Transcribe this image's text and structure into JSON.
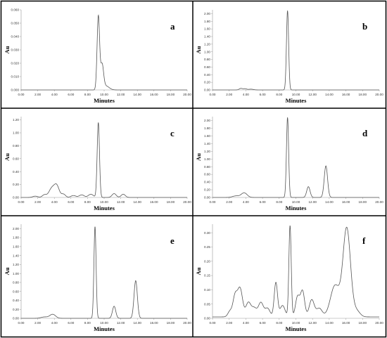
{
  "figure": {
    "frame_color": "#000000",
    "trace_color": "#555555"
  },
  "chart_data": [
    {
      "type": "line",
      "panel_label": "a",
      "xlabel": "Minutes",
      "ylabel": "Au",
      "xlim": [
        0,
        20
      ],
      "ylim": [
        0,
        0.06
      ],
      "xticks": [
        "0.00",
        "2.00",
        "4.00",
        "6.00",
        "8.00",
        "10.00",
        "12.00",
        "14.00",
        "16.00",
        "18.00",
        "20.00"
      ],
      "yticks": [
        "0.000",
        "0.010",
        "0.020",
        "0.030",
        "0.040",
        "0.050",
        "0.060"
      ],
      "baseline": 0.0,
      "peaks": [
        {
          "rt": 9.3,
          "height": 0.055,
          "width": 0.15
        },
        {
          "rt": 9.75,
          "height": 0.018,
          "width": 0.18
        },
        {
          "rt": 10.2,
          "height": 0.003,
          "width": 0.4
        }
      ]
    },
    {
      "type": "line",
      "panel_label": "b",
      "xlabel": "Minutes",
      "ylabel": "Au",
      "xlim": [
        0,
        20
      ],
      "ylim": [
        0,
        2.1
      ],
      "xticks": [
        "0.00",
        "2.00",
        "4.00",
        "6.00",
        "8.00",
        "10.00",
        "12.00",
        "14.00",
        "16.00",
        "18.00",
        "20.00"
      ],
      "yticks": [
        "0.00",
        "0.20",
        "0.40",
        "0.60",
        "0.80",
        "1.00",
        "1.20",
        "1.40",
        "1.60",
        "1.80",
        "2.00"
      ],
      "baseline": 0.0,
      "peaks": [
        {
          "rt": 3.4,
          "height": 0.04,
          "width": 0.2
        },
        {
          "rt": 3.9,
          "height": 0.03,
          "width": 0.2
        },
        {
          "rt": 4.6,
          "height": 0.02,
          "width": 0.3
        },
        {
          "rt": 9.0,
          "height": 2.08,
          "width": 0.13
        }
      ]
    },
    {
      "type": "line",
      "panel_label": "c",
      "xlabel": "Minutes",
      "ylabel": "Au",
      "xlim": [
        0,
        20
      ],
      "ylim": [
        0,
        1.25
      ],
      "xticks": [
        "0.00",
        "2.00",
        "4.00",
        "6.00",
        "8.00",
        "10.00",
        "12.00",
        "14.00",
        "16.00",
        "18.00",
        "20.00"
      ],
      "yticks": [
        "0.00",
        "0.20",
        "0.40",
        "0.60",
        "0.80",
        "1.00",
        "1.20"
      ],
      "baseline": 0.0,
      "peaks": [
        {
          "rt": 1.7,
          "height": 0.02,
          "width": 0.3
        },
        {
          "rt": 2.8,
          "height": 0.04,
          "width": 0.25
        },
        {
          "rt": 3.7,
          "height": 0.14,
          "width": 0.35
        },
        {
          "rt": 4.3,
          "height": 0.17,
          "width": 0.3
        },
        {
          "rt": 5.1,
          "height": 0.05,
          "width": 0.25
        },
        {
          "rt": 6.3,
          "height": 0.03,
          "width": 0.3
        },
        {
          "rt": 7.3,
          "height": 0.04,
          "width": 0.3
        },
        {
          "rt": 8.4,
          "height": 0.05,
          "width": 0.3
        },
        {
          "rt": 9.3,
          "height": 1.16,
          "width": 0.14
        },
        {
          "rt": 11.2,
          "height": 0.06,
          "width": 0.25
        },
        {
          "rt": 12.3,
          "height": 0.05,
          "width": 0.25
        }
      ]
    },
    {
      "type": "line",
      "panel_label": "d",
      "xlabel": "Minutes",
      "ylabel": "Au",
      "xlim": [
        0,
        20
      ],
      "ylim": [
        0,
        2.1
      ],
      "xticks": [
        "0.00",
        "2.00",
        "4.00",
        "6.00",
        "8.00",
        "10.00",
        "12.00",
        "14.00",
        "16.00",
        "18.00",
        "20.00"
      ],
      "yticks": [
        "0.00",
        "0.20",
        "0.40",
        "0.60",
        "0.80",
        "1.00",
        "1.20",
        "1.40",
        "1.60",
        "1.80",
        "2.00"
      ],
      "baseline": 0.0,
      "peaks": [
        {
          "rt": 2.8,
          "height": 0.04,
          "width": 0.4
        },
        {
          "rt": 3.8,
          "height": 0.12,
          "width": 0.35
        },
        {
          "rt": 9.0,
          "height": 2.08,
          "width": 0.13
        },
        {
          "rt": 11.5,
          "height": 0.28,
          "width": 0.2
        },
        {
          "rt": 13.6,
          "height": 0.82,
          "width": 0.2
        }
      ]
    },
    {
      "type": "line",
      "panel_label": "e",
      "xlabel": "Minutes",
      "ylabel": "Au",
      "xlim": [
        0,
        20
      ],
      "ylim": [
        0,
        2.1
      ],
      "xticks": [
        "0.00",
        "2.00",
        "4.00",
        "6.00",
        "8.00",
        "10.00",
        "12.00",
        "14.00",
        "16.00",
        "18.00",
        "20.00"
      ],
      "yticks": [
        "0.00",
        "0.20",
        "0.40",
        "0.60",
        "0.80",
        "1.00",
        "1.20",
        "1.40",
        "1.60",
        "1.80",
        "2.00"
      ],
      "baseline": 0.0,
      "peaks": [
        {
          "rt": 2.8,
          "height": 0.03,
          "width": 0.4
        },
        {
          "rt": 3.8,
          "height": 0.09,
          "width": 0.35
        },
        {
          "rt": 8.9,
          "height": 2.05,
          "width": 0.13
        },
        {
          "rt": 11.2,
          "height": 0.27,
          "width": 0.2
        },
        {
          "rt": 13.8,
          "height": 0.84,
          "width": 0.2
        }
      ]
    },
    {
      "type": "line",
      "panel_label": "f",
      "xlabel": "Minutes",
      "ylabel": "Au",
      "xlim": [
        0,
        20
      ],
      "ylim": [
        0,
        0.33
      ],
      "xticks": [
        "0.00",
        "2.00",
        "4.00",
        "6.00",
        "8.00",
        "10.00",
        "12.00",
        "14.00",
        "16.00",
        "18.00",
        "20.00"
      ],
      "yticks": [
        "0.00",
        "0.05",
        "0.10",
        "0.15",
        "0.20",
        "0.25",
        "0.30"
      ],
      "baseline": 0.005,
      "peaks": [
        {
          "rt": 2.1,
          "height": 0.02,
          "width": 0.25
        },
        {
          "rt": 2.7,
          "height": 0.07,
          "width": 0.25
        },
        {
          "rt": 3.3,
          "height": 0.1,
          "width": 0.3
        },
        {
          "rt": 4.3,
          "height": 0.05,
          "width": 0.3
        },
        {
          "rt": 5.0,
          "height": 0.03,
          "width": 0.3
        },
        {
          "rt": 5.8,
          "height": 0.05,
          "width": 0.3
        },
        {
          "rt": 6.6,
          "height": 0.03,
          "width": 0.3
        },
        {
          "rt": 7.6,
          "height": 0.12,
          "width": 0.2
        },
        {
          "rt": 8.4,
          "height": 0.04,
          "width": 0.3
        },
        {
          "rt": 9.3,
          "height": 0.32,
          "width": 0.14
        },
        {
          "rt": 10.2,
          "height": 0.07,
          "width": 0.25
        },
        {
          "rt": 10.8,
          "height": 0.09,
          "width": 0.25
        },
        {
          "rt": 11.9,
          "height": 0.06,
          "width": 0.3
        },
        {
          "rt": 12.8,
          "height": 0.03,
          "width": 0.35
        },
        {
          "rt": 14.7,
          "height": 0.11,
          "width": 0.55
        },
        {
          "rt": 16.1,
          "height": 0.31,
          "width": 0.45
        },
        {
          "rt": 17.3,
          "height": 0.02,
          "width": 0.4
        }
      ]
    }
  ]
}
